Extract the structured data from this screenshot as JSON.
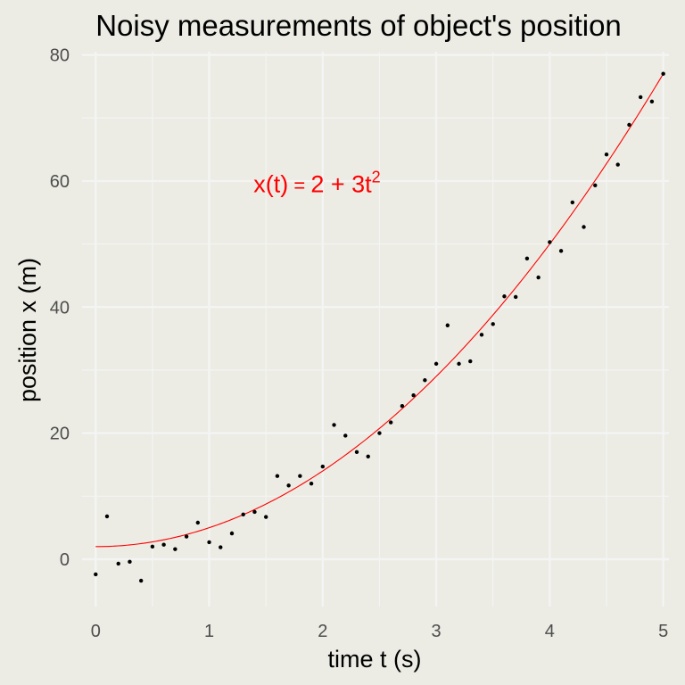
{
  "chart_data": {
    "type": "scatter",
    "title": "Noisy measurements of object's position",
    "xlabel": "time t (s)",
    "ylabel": "position x (m)",
    "xlim": [
      -0.12,
      5.05
    ],
    "ylim": [
      -7.5,
      80.5
    ],
    "x_ticks": [
      0,
      1,
      2,
      3,
      4,
      5
    ],
    "x_tick_labels": [
      "0",
      "1",
      "2",
      "3",
      "4",
      "5"
    ],
    "y_ticks": [
      0,
      20,
      40,
      60,
      80
    ],
    "y_tick_labels": [
      "0",
      "20",
      "40",
      "60",
      "80"
    ],
    "grid": true,
    "legend": "none",
    "background_color": "#ecece4",
    "grid_color": "#f4f4f4",
    "point_color": "#000000",
    "curve_color": "#ff0000",
    "series": [
      {
        "kind": "points",
        "points": [
          [
            0.0,
            -2.4
          ],
          [
            0.1,
            6.8
          ],
          [
            0.2,
            -0.7
          ],
          [
            0.3,
            -0.4
          ],
          [
            0.4,
            -3.4
          ],
          [
            0.5,
            2.0
          ],
          [
            0.6,
            2.3
          ],
          [
            0.7,
            1.6
          ],
          [
            0.8,
            3.6
          ],
          [
            0.9,
            5.8
          ],
          [
            1.0,
            2.7
          ],
          [
            1.1,
            1.9
          ],
          [
            1.2,
            4.1
          ],
          [
            1.3,
            7.1
          ],
          [
            1.4,
            7.5
          ],
          [
            1.5,
            6.7
          ],
          [
            1.6,
            13.2
          ],
          [
            1.7,
            11.7
          ],
          [
            1.8,
            13.2
          ],
          [
            1.9,
            12.0
          ],
          [
            2.0,
            14.7
          ],
          [
            2.1,
            21.3
          ],
          [
            2.2,
            19.6
          ],
          [
            2.3,
            17.0
          ],
          [
            2.4,
            16.3
          ],
          [
            2.5,
            20.0
          ],
          [
            2.6,
            21.7
          ],
          [
            2.7,
            24.3
          ],
          [
            2.8,
            26.0
          ],
          [
            2.9,
            28.4
          ],
          [
            3.0,
            31.0
          ],
          [
            3.1,
            37.1
          ],
          [
            3.2,
            31.0
          ],
          [
            3.3,
            31.4
          ],
          [
            3.4,
            35.6
          ],
          [
            3.5,
            37.3
          ],
          [
            3.6,
            41.7
          ],
          [
            3.7,
            41.6
          ],
          [
            3.8,
            47.7
          ],
          [
            3.9,
            44.7
          ],
          [
            4.0,
            50.3
          ],
          [
            4.1,
            48.9
          ],
          [
            4.2,
            56.6
          ],
          [
            4.3,
            52.7
          ],
          [
            4.4,
            59.3
          ],
          [
            4.5,
            64.2
          ],
          [
            4.6,
            62.6
          ],
          [
            4.7,
            68.9
          ],
          [
            4.8,
            73.3
          ],
          [
            4.9,
            72.6
          ],
          [
            5.0,
            77.0
          ]
        ]
      },
      {
        "kind": "curve",
        "function": "2 + 3*t^2",
        "t_range": [
          0,
          5
        ]
      }
    ],
    "annotations": [
      {
        "x": 1.95,
        "y": 59.5,
        "color": "#ff0000",
        "prefix": "x(t)",
        "equals": " = ",
        "body": "2 + 3t",
        "sup": "2"
      }
    ]
  }
}
